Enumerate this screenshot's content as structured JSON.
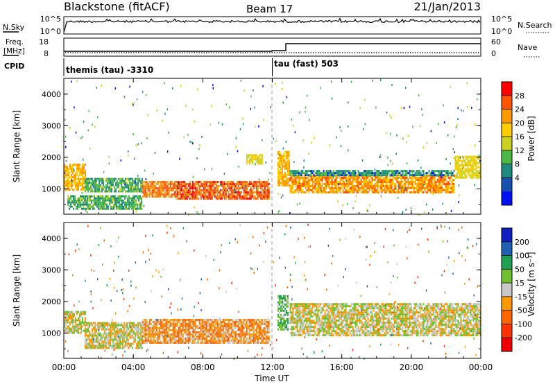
{
  "header": {
    "station": "Blackstone (fitACF)",
    "beam": "Beam 17",
    "date": "21/Jan/2013"
  },
  "noise_panel": {
    "left_label": "N.Sky",
    "left_ticks": [
      "10^5",
      "10^0"
    ],
    "right_ticks": [
      "10^5",
      "10^0"
    ],
    "right_label": "N.Search"
  },
  "freq_panel": {
    "left_label_line1": "Freq.",
    "left_label_line2": "[MHz]",
    "left_ticks": [
      "18",
      "8"
    ],
    "right_ticks": [
      "60",
      "0"
    ],
    "right_label": "Nave"
  },
  "cpid": {
    "label": "CPID",
    "segments": [
      {
        "text": "themis (tau) -3310",
        "start_hour": 0
      },
      {
        "text": "tau (fast) 503",
        "start_hour": 12
      }
    ]
  },
  "time_axis": {
    "label": "Time UT",
    "ticks": [
      "00:00",
      "04:00",
      "08:00",
      "12:00",
      "16:00",
      "20:00",
      "00:00"
    ],
    "range_hours": [
      0,
      24
    ]
  },
  "chart_data": [
    {
      "type": "heatmap",
      "title": "",
      "ylabel": "Slant Range [km]",
      "yticks": [
        "1000",
        "2000",
        "3000",
        "4000"
      ],
      "ylim": [
        200,
        4500
      ],
      "xlim_hours": [
        0,
        24
      ],
      "colorbar_label": "Power [dB]",
      "colorbar_ticks": [
        "28",
        "24",
        "20",
        "16",
        "12",
        "8",
        "4"
      ],
      "colorbar_colors": [
        "#ff0000",
        "#ff5500",
        "#ff9900",
        "#ffcc00",
        "#c8d020",
        "#4cb848",
        "#1f8a80",
        "#1850b0",
        "#0010ee"
      ],
      "bands": [
        {
          "t0": 0.0,
          "t1": 1.2,
          "r0": 950,
          "r1": 1800,
          "level": 20
        },
        {
          "t0": 1.2,
          "t1": 4.5,
          "r0": 950,
          "r1": 1350,
          "level": 9
        },
        {
          "t0": 0.2,
          "t1": 4.5,
          "r0": 350,
          "r1": 800,
          "level": 9
        },
        {
          "t0": 4.5,
          "t1": 6.5,
          "r0": 750,
          "r1": 1250,
          "level": 24
        },
        {
          "t0": 6.5,
          "t1": 11.8,
          "r0": 700,
          "r1": 1250,
          "level": 26
        },
        {
          "t0": 10.5,
          "t1": 11.4,
          "r0": 1800,
          "r1": 2100,
          "level": 16
        },
        {
          "t0": 12.3,
          "t1": 13.0,
          "r0": 1100,
          "r1": 2200,
          "level": 20
        },
        {
          "t0": 13.0,
          "t1": 22.5,
          "r0": 900,
          "r1": 1450,
          "level": 22
        },
        {
          "t0": 13.0,
          "t1": 22.5,
          "r0": 1450,
          "r1": 1600,
          "level": 7
        },
        {
          "t0": 22.5,
          "t1": 24.0,
          "r0": 1350,
          "r1": 2050,
          "level": 16
        }
      ]
    },
    {
      "type": "heatmap",
      "title": "",
      "ylabel": "Slant Range [km]",
      "yticks": [
        "1000",
        "2000",
        "3000",
        "4000"
      ],
      "ylim": [
        200,
        4500
      ],
      "xlim_hours": [
        0,
        24
      ],
      "colorbar_label": "Velocity [m s⁻¹]",
      "colorbar_ticks": [
        "200",
        "100",
        "50",
        "15",
        "-15",
        "-50",
        "-100",
        "-200"
      ],
      "colorbar_colors": [
        "#1020c0",
        "#2060b0",
        "#20a050",
        "#70c030",
        "#c8c8c8",
        "#ff9900",
        "#ff6600",
        "#ff3300",
        "#ee0000"
      ],
      "bands": [
        {
          "t0": 0.0,
          "t1": 1.2,
          "r0": 1000,
          "r1": 1700,
          "level": 0
        },
        {
          "t0": 1.2,
          "t1": 4.5,
          "r0": 500,
          "r1": 1350,
          "level": 0
        },
        {
          "t0": 4.5,
          "t1": 11.8,
          "r0": 700,
          "r1": 1450,
          "level": -40
        },
        {
          "t0": 12.3,
          "t1": 12.9,
          "r0": 1100,
          "r1": 2200,
          "level": 40
        },
        {
          "t0": 13.0,
          "t1": 24.0,
          "r0": 900,
          "r1": 1950,
          "level": 0
        }
      ]
    }
  ]
}
